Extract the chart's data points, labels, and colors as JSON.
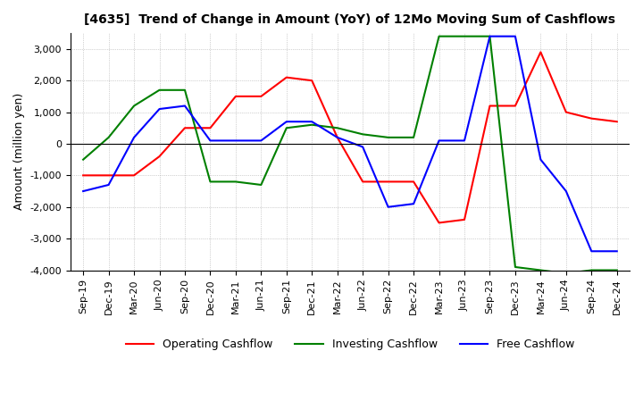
{
  "title": "[4635]  Trend of Change in Amount (YoY) of 12Mo Moving Sum of Cashflows",
  "ylabel": "Amount (million yen)",
  "ylim": [
    -4000,
    3500
  ],
  "yticks": [
    -4000,
    -3000,
    -2000,
    -1000,
    0,
    1000,
    2000,
    3000
  ],
  "x_labels": [
    "Sep-19",
    "Dec-19",
    "Mar-20",
    "Jun-20",
    "Sep-20",
    "Dec-20",
    "Mar-21",
    "Jun-21",
    "Sep-21",
    "Dec-21",
    "Mar-22",
    "Jun-22",
    "Sep-22",
    "Dec-22",
    "Mar-23",
    "Jun-23",
    "Sep-23",
    "Dec-23",
    "Mar-24",
    "Jun-24",
    "Sep-24",
    "Dec-24"
  ],
  "operating": [
    -1000,
    -1000,
    -1000,
    -400,
    500,
    500,
    1500,
    1500,
    2100,
    2000,
    200,
    -1200,
    -1200,
    -1200,
    -2500,
    -2400,
    1200,
    1200,
    2900,
    1000,
    800,
    700
  ],
  "investing": [
    -500,
    200,
    1200,
    1700,
    1700,
    -1200,
    -1200,
    -1300,
    500,
    600,
    500,
    300,
    200,
    200,
    3400,
    3400,
    3400,
    -3900,
    -4000,
    -4100,
    -4000,
    -4000
  ],
  "free": [
    -1500,
    -1300,
    200,
    1100,
    1200,
    100,
    100,
    100,
    700,
    700,
    200,
    -100,
    -2000,
    -1900,
    100,
    100,
    3400,
    3400,
    -500,
    -1500,
    -3400,
    -3400
  ],
  "colors": {
    "operating": "#ff0000",
    "investing": "#008000",
    "free": "#0000ff"
  },
  "legend_labels": [
    "Operating Cashflow",
    "Investing Cashflow",
    "Free Cashflow"
  ]
}
